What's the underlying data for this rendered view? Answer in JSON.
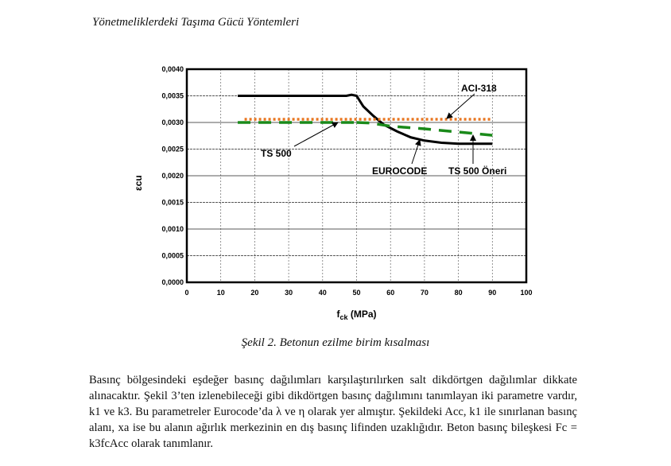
{
  "header": "Yönetmeliklerdeki Taşıma Gücü Yöntemleri",
  "caption": "Şekil 2. Betonun ezilme birim kısalması",
  "paragraph": "Basınç bölgesindeki eşdeğer basınç dağılımları karşılaştırılırken salt dikdörtgen dağılımlar dikkate alınacaktır. Şekil 3’ten izlenebileceği gibi dikdörtgen basınç dağılımını tanımlayan iki parametre vardır, k1 ve k3. Bu parametreler Eurocode’da λ ve η olarak yer almıştır. Şekildeki Acc, k1 ile sınırlanan basınç alanı, xa ise bu alanın ağırlık merkezinin en dış basınç lifinden uzaklığıdır. Beton basınç bileşkesi Fc = k3fcAcc olarak tanımlanır.",
  "chart_data": {
    "type": "line",
    "xlabel": "fck (MPa)",
    "ylabel": "εcu",
    "xlim": [
      0,
      100
    ],
    "ylim": [
      0,
      0.004
    ],
    "xticks": [
      "0",
      "10",
      "20",
      "30",
      "40",
      "50",
      "60",
      "70",
      "80",
      "90",
      "100"
    ],
    "yticks": [
      "0,0000",
      "0,0005",
      "0,0010",
      "0,0015",
      "0,0020",
      "0,0025",
      "0,0030",
      "0,0035",
      "0,0040"
    ],
    "grid": true,
    "series": [
      {
        "name": "EUROCODE",
        "color": "#000000",
        "style": "solid",
        "x": [
          15,
          47,
          48.5,
          50,
          52,
          55,
          58,
          62,
          66,
          70,
          75,
          80,
          90
        ],
        "y": [
          0.0035,
          0.0035,
          0.00352,
          0.0035,
          0.0033,
          0.00312,
          0.00296,
          0.00283,
          0.00272,
          0.00266,
          0.00262,
          0.0026,
          0.0026
        ]
      },
      {
        "name": "ACI-318",
        "color": "#e87722",
        "style": "dotted",
        "x": [
          17,
          90
        ],
        "y": [
          0.00306,
          0.00306
        ]
      },
      {
        "name": "TS 500",
        "color": "#1a8a1a",
        "style": "dashed",
        "x": [
          15,
          50
        ],
        "y": [
          0.003,
          0.003
        ]
      },
      {
        "name": "TS 500  Öneri",
        "color": "#1a8a1a",
        "style": "dashed",
        "x": [
          50,
          54,
          60,
          70,
          80,
          90
        ],
        "y": [
          0.003,
          0.00299,
          0.00293,
          0.00288,
          0.00282,
          0.00276
        ]
      }
    ]
  }
}
